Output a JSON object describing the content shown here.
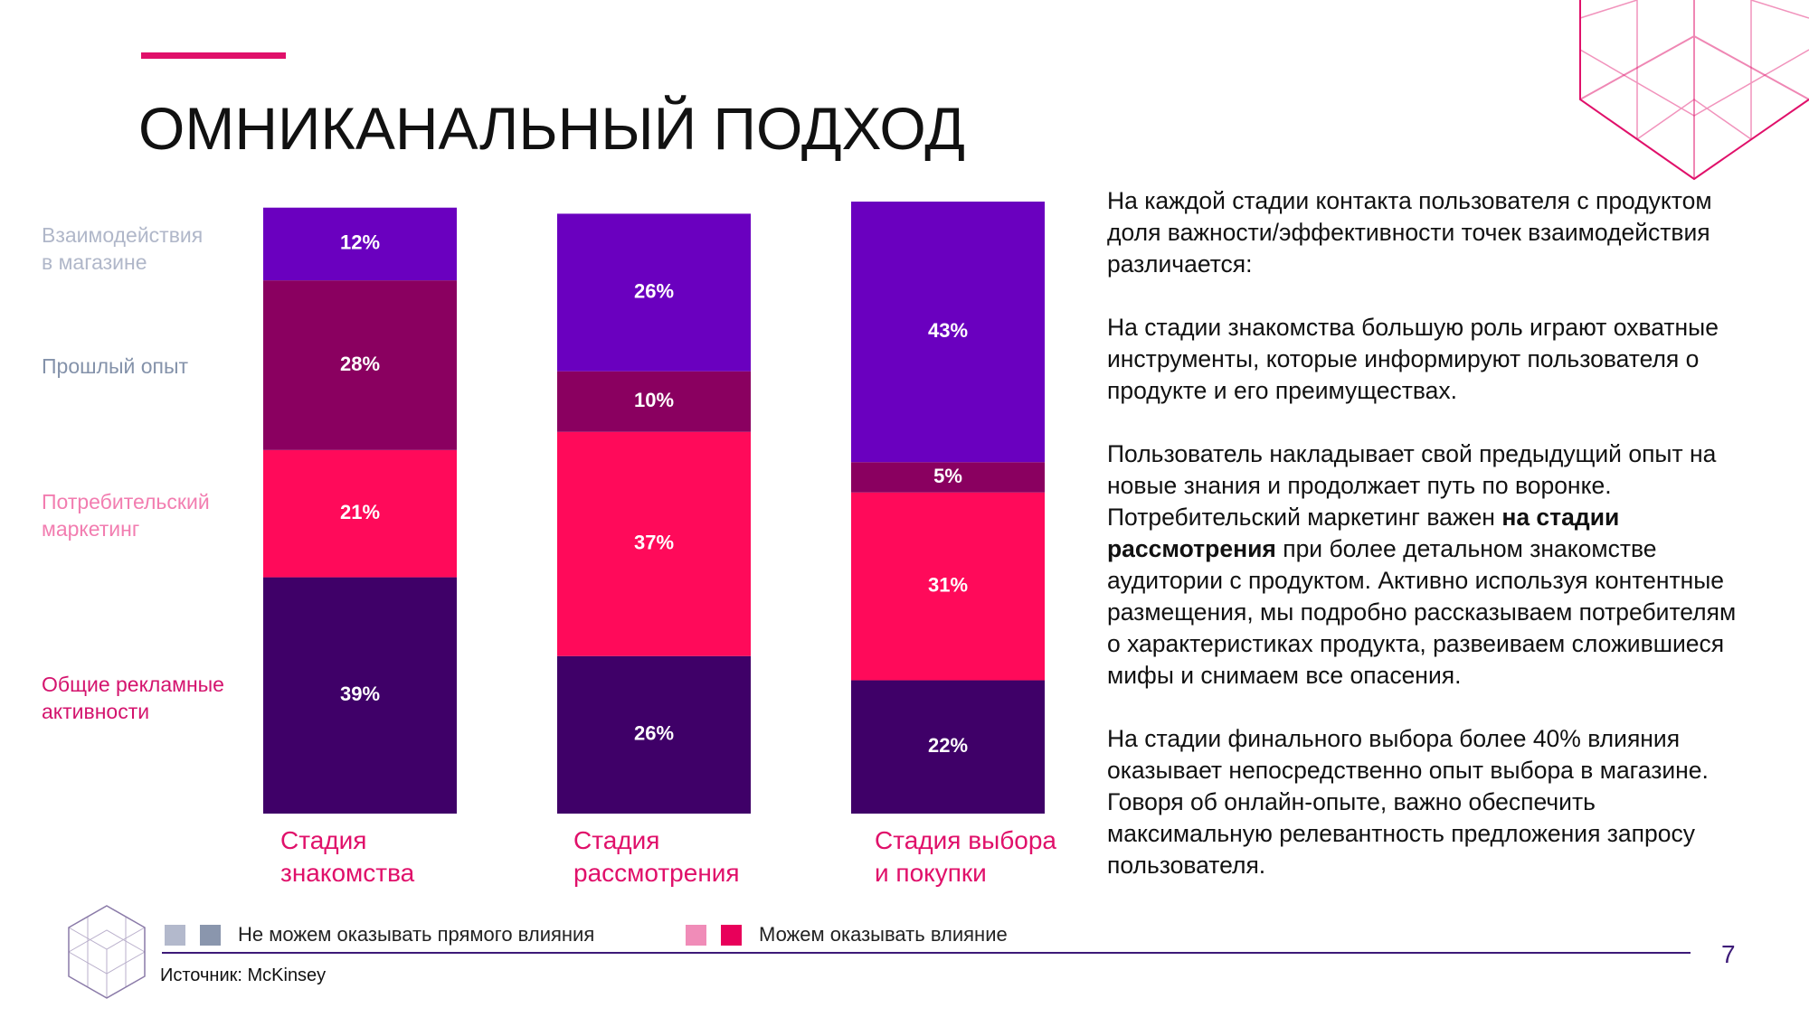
{
  "title": "ОМНИКАНАЛЬНЫЙ ПОДХОД",
  "chart_data": {
    "type": "stacked_bar",
    "categories": [
      "Стадия\nзнакомства",
      "Стадия\nрассмотрения",
      "Стадия выбора\nи покупки"
    ],
    "series": [
      {
        "name": "Общие рекламные\nактивности",
        "color": "#3f0068",
        "label_color": "#d4146e",
        "values": [
          39,
          26,
          22
        ],
        "value_labels": [
          "39%",
          "26%",
          "22%"
        ]
      },
      {
        "name": "Потребительский\nмаркетинг",
        "color": "#ff0a5a",
        "label_color": "#f27db0",
        "values": [
          21,
          37,
          31
        ],
        "value_labels": [
          "21%",
          "37%",
          "31%"
        ]
      },
      {
        "name": "Прошлый опыт",
        "color": "#8a0060",
        "label_color": "#8492aa",
        "values": [
          28,
          10,
          5
        ],
        "value_labels": [
          "28%",
          "10%",
          "5%"
        ]
      },
      {
        "name": "Взаимодействия\nв магазине",
        "color": "#6a00bf",
        "label_color": "#b0b7c9",
        "values": [
          12,
          26,
          43
        ],
        "value_labels": [
          "12%",
          "26%",
          "43%"
        ]
      }
    ]
  },
  "influence_legend": [
    {
      "label": "Не можем оказывать прямого влияния",
      "colors": [
        "#b3b9cc",
        "#8a96ad"
      ]
    },
    {
      "label": "Можем оказывать влияние",
      "colors": [
        "#f08cb8",
        "#e8005a"
      ]
    }
  ],
  "source": "Источник: McKinsey",
  "page_number": "7",
  "text": {
    "blocks": [
      [
        [
          {
            "text": "На каждой стадии контакта пользователя с продуктом доля важности/эффективности точек взаимодействия различается:",
            "bold": false
          }
        ]
      ],
      [
        [
          {
            "text": "На стадии знакомства большую роль играют охватные инструменты, которые информируют пользователя о продукте и его преимуществах.",
            "bold": false
          }
        ]
      ],
      [
        [
          {
            "text": "Пользователь накладывает свой предыдущий опыт на новые знания и продолжает путь по воронке.",
            "bold": false
          }
        ],
        [
          {
            "text": "Потребительский маркетинг важен ",
            "bold": false
          },
          {
            "text": "на стадии рассмотрения",
            "bold": true
          },
          {
            "text": " при более детальном знакомстве аудитории с продуктом. Активно используя контентные размещения, мы подробно рассказываем потребителям о характеристиках продукта, развеиваем сложившиеся мифы и снимаем все опасения.",
            "bold": false
          }
        ]
      ],
      [
        [
          {
            "text": "На стадии финального выбора более 40% влияния оказывает непосредственно опыт выбора в магазине. Говоря об онлайн-опыте, важно обеспечить максимальную релевантность предложения запросу пользователя.",
            "bold": false
          }
        ]
      ]
    ]
  }
}
